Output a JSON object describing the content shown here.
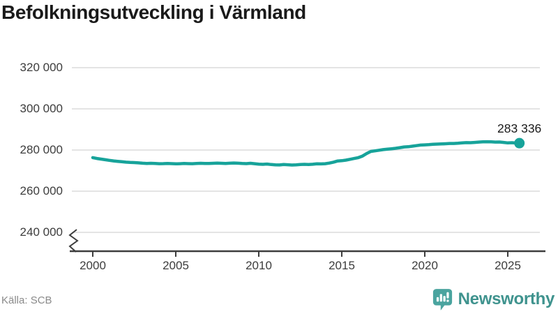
{
  "header": {
    "title": "Befolkningsutveckling i Värmland"
  },
  "footer": {
    "source": "Källa: SCB",
    "brand": "Newsworthy"
  },
  "colors": {
    "title": "#1a1a1a",
    "tick_label": "#3d3d3d",
    "grid": "#e4e4e4",
    "axis": "#3d3d3d",
    "line": "#17a39a",
    "source": "#8a8a8a",
    "brand": "#3f938e",
    "brand_icon": "#4aa49f"
  },
  "chart_data": {
    "type": "line",
    "title": "Befolkningsutveckling i Värmland",
    "source": "SCB",
    "grid": "horizontal",
    "legend": "none",
    "axis_break": true,
    "xlim": [
      1998.7,
      2027.6
    ],
    "ylim": [
      240000,
      320000
    ],
    "x_ticks": [
      2000,
      2005,
      2010,
      2015,
      2020,
      2025
    ],
    "x_tick_labels": [
      "2000",
      "2005",
      "2010",
      "2015",
      "2020",
      "2025"
    ],
    "y_ticks": [
      320000,
      300000,
      280000,
      260000,
      240000
    ],
    "y_tick_labels": [
      "320 000",
      "300 000",
      "280 000",
      "260 000",
      "240 000"
    ],
    "end_label": "283 336",
    "end_value": 283336,
    "series": [
      {
        "points": [
          [
            2000.0,
            276300
          ],
          [
            2000.25,
            275900
          ],
          [
            2000.5,
            275600
          ],
          [
            2000.75,
            275300
          ],
          [
            2001.0,
            275000
          ],
          [
            2001.25,
            274700
          ],
          [
            2001.5,
            274500
          ],
          [
            2001.75,
            274300
          ],
          [
            2002.0,
            274100
          ],
          [
            2002.25,
            273950
          ],
          [
            2002.5,
            273900
          ],
          [
            2002.75,
            273750
          ],
          [
            2003.0,
            273600
          ],
          [
            2003.25,
            273500
          ],
          [
            2003.5,
            273550
          ],
          [
            2003.75,
            273450
          ],
          [
            2004.0,
            273350
          ],
          [
            2004.25,
            273400
          ],
          [
            2004.5,
            273500
          ],
          [
            2004.75,
            273400
          ],
          [
            2005.0,
            273300
          ],
          [
            2005.25,
            273350
          ],
          [
            2005.5,
            273450
          ],
          [
            2005.75,
            273400
          ],
          [
            2006.0,
            273350
          ],
          [
            2006.25,
            273450
          ],
          [
            2006.5,
            273550
          ],
          [
            2006.75,
            273500
          ],
          [
            2007.0,
            273450
          ],
          [
            2007.25,
            273550
          ],
          [
            2007.5,
            273650
          ],
          [
            2007.75,
            273550
          ],
          [
            2008.0,
            273500
          ],
          [
            2008.25,
            273600
          ],
          [
            2008.5,
            273700
          ],
          [
            2008.75,
            273600
          ],
          [
            2009.0,
            273450
          ],
          [
            2009.25,
            273400
          ],
          [
            2009.5,
            273550
          ],
          [
            2009.75,
            273350
          ],
          [
            2010.0,
            273150
          ],
          [
            2010.25,
            273050
          ],
          [
            2010.5,
            273200
          ],
          [
            2010.75,
            272950
          ],
          [
            2011.0,
            272800
          ],
          [
            2011.25,
            272750
          ],
          [
            2011.5,
            272950
          ],
          [
            2011.75,
            272850
          ],
          [
            2012.0,
            272700
          ],
          [
            2012.25,
            272800
          ],
          [
            2012.5,
            273000
          ],
          [
            2012.75,
            273050
          ],
          [
            2013.0,
            273000
          ],
          [
            2013.25,
            273100
          ],
          [
            2013.5,
            273300
          ],
          [
            2013.75,
            273270
          ],
          [
            2014.0,
            273350
          ],
          [
            2014.25,
            273650
          ],
          [
            2014.5,
            274100
          ],
          [
            2014.75,
            274690
          ],
          [
            2015.0,
            274800
          ],
          [
            2015.25,
            275100
          ],
          [
            2015.5,
            275500
          ],
          [
            2015.75,
            275900
          ],
          [
            2016.0,
            276300
          ],
          [
            2016.25,
            277100
          ],
          [
            2016.5,
            278300
          ],
          [
            2016.75,
            279330
          ],
          [
            2017.0,
            279600
          ],
          [
            2017.25,
            279900
          ],
          [
            2017.5,
            280200
          ],
          [
            2017.75,
            280400
          ],
          [
            2018.0,
            280600
          ],
          [
            2018.25,
            280850
          ],
          [
            2018.5,
            281150
          ],
          [
            2018.75,
            281480
          ],
          [
            2019.0,
            281600
          ],
          [
            2019.25,
            281850
          ],
          [
            2019.5,
            282150
          ],
          [
            2019.75,
            282410
          ],
          [
            2020.0,
            282500
          ],
          [
            2020.25,
            282600
          ],
          [
            2020.5,
            282800
          ],
          [
            2020.75,
            282890
          ],
          [
            2021.0,
            282950
          ],
          [
            2021.25,
            283050
          ],
          [
            2021.5,
            283200
          ],
          [
            2021.75,
            283200
          ],
          [
            2022.0,
            283300
          ],
          [
            2022.25,
            283450
          ],
          [
            2022.5,
            283600
          ],
          [
            2022.75,
            283550
          ],
          [
            2023.0,
            283700
          ],
          [
            2023.25,
            283850
          ],
          [
            2023.5,
            284000
          ],
          [
            2023.75,
            284050
          ],
          [
            2024.0,
            283950
          ],
          [
            2024.25,
            283850
          ],
          [
            2024.5,
            283900
          ],
          [
            2024.75,
            283700
          ],
          [
            2025.0,
            283450
          ],
          [
            2025.25,
            283550
          ],
          [
            2025.5,
            283400
          ],
          [
            2025.7,
            283336
          ]
        ]
      }
    ]
  }
}
